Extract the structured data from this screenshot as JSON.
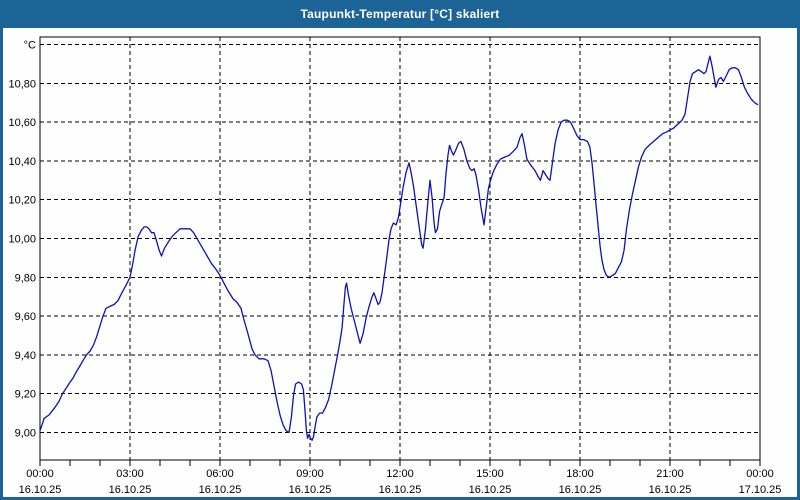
{
  "window": {
    "title": "Taupunkt-Temperatur [°C] skaliert"
  },
  "colors": {
    "titlebar": "#1d6496",
    "window_border": "#1d6496",
    "chart_background": "#fdfefd",
    "grid": "#000000",
    "axis": "#000000",
    "line": "#1010b8",
    "title_text": "#ffffff",
    "label_text": "#000000"
  },
  "chart_data": {
    "type": "line",
    "title": "Taupunkt-Temperatur [°C] skaliert",
    "ylabel": "°C",
    "xlabel": "",
    "legend": "none",
    "grid": "dashed",
    "ylim": [
      8.85,
      11.04
    ],
    "xlim_hours": [
      0,
      24
    ],
    "y_ticks": [
      {
        "value": 9.0,
        "label": "9,00"
      },
      {
        "value": 9.2,
        "label": "9,20"
      },
      {
        "value": 9.4,
        "label": "9,40"
      },
      {
        "value": 9.6,
        "label": "9,60"
      },
      {
        "value": 9.8,
        "label": "9,80"
      },
      {
        "value": 10.0,
        "label": "10,00"
      },
      {
        "value": 10.2,
        "label": "10,20"
      },
      {
        "value": 10.4,
        "label": "10,40"
      },
      {
        "value": 10.6,
        "label": "10,60"
      },
      {
        "value": 10.8,
        "label": "10,80"
      },
      {
        "value": 11.0,
        "label": "°C"
      }
    ],
    "x_ticks": {
      "minor_step_hours": 1,
      "major_step_hours": 3,
      "majors": [
        {
          "hour": 0,
          "time": "00:00",
          "date": "16.10.25"
        },
        {
          "hour": 3,
          "time": "03:00",
          "date": "16.10.25"
        },
        {
          "hour": 6,
          "time": "06:00",
          "date": "16.10.25"
        },
        {
          "hour": 9,
          "time": "09:00",
          "date": "16.10.25"
        },
        {
          "hour": 12,
          "time": "12:00",
          "date": "16.10.25"
        },
        {
          "hour": 15,
          "time": "15:00",
          "date": "16.10.25"
        },
        {
          "hour": 18,
          "time": "18:00",
          "date": "16.10.25"
        },
        {
          "hour": 21,
          "time": "21:00",
          "date": "16.10.25"
        },
        {
          "hour": 24,
          "time": "00:00",
          "date": "17.10.25"
        }
      ]
    },
    "series": [
      {
        "name": "Taupunkt-Temperatur",
        "color": "#1010b8",
        "points": [
          [
            0.0,
            9.01
          ],
          [
            0.07,
            9.04
          ],
          [
            0.13,
            9.07
          ],
          [
            0.2,
            9.08
          ],
          [
            0.3,
            9.09
          ],
          [
            0.4,
            9.11
          ],
          [
            0.5,
            9.13
          ],
          [
            0.63,
            9.16
          ],
          [
            0.75,
            9.2
          ],
          [
            0.88,
            9.23
          ],
          [
            1.0,
            9.26
          ],
          [
            1.1,
            9.28
          ],
          [
            1.2,
            9.31
          ],
          [
            1.32,
            9.34
          ],
          [
            1.43,
            9.37
          ],
          [
            1.55,
            9.4
          ],
          [
            1.67,
            9.42
          ],
          [
            1.78,
            9.45
          ],
          [
            1.88,
            9.49
          ],
          [
            2.0,
            9.55
          ],
          [
            2.1,
            9.6
          ],
          [
            2.2,
            9.64
          ],
          [
            2.33,
            9.65
          ],
          [
            2.47,
            9.66
          ],
          [
            2.6,
            9.68
          ],
          [
            2.73,
            9.72
          ],
          [
            2.87,
            9.76
          ],
          [
            3.0,
            9.8
          ],
          [
            3.08,
            9.86
          ],
          [
            3.17,
            9.94
          ],
          [
            3.27,
            10.01
          ],
          [
            3.37,
            10.04
          ],
          [
            3.47,
            10.06
          ],
          [
            3.55,
            10.06
          ],
          [
            3.63,
            10.05
          ],
          [
            3.72,
            10.03
          ],
          [
            3.8,
            10.03
          ],
          [
            3.88,
            9.99
          ],
          [
            3.97,
            9.94
          ],
          [
            4.05,
            9.91
          ],
          [
            4.15,
            9.95
          ],
          [
            4.27,
            9.98
          ],
          [
            4.4,
            10.01
          ],
          [
            4.53,
            10.03
          ],
          [
            4.67,
            10.05
          ],
          [
            4.83,
            10.05
          ],
          [
            5.0,
            10.05
          ],
          [
            5.12,
            10.03
          ],
          [
            5.27,
            9.99
          ],
          [
            5.42,
            9.95
          ],
          [
            5.57,
            9.91
          ],
          [
            5.72,
            9.87
          ],
          [
            5.87,
            9.84
          ],
          [
            6.0,
            9.81
          ],
          [
            6.13,
            9.77
          ],
          [
            6.27,
            9.73
          ],
          [
            6.43,
            9.69
          ],
          [
            6.57,
            9.67
          ],
          [
            6.7,
            9.64
          ],
          [
            6.8,
            9.58
          ],
          [
            6.93,
            9.51
          ],
          [
            7.07,
            9.43
          ],
          [
            7.17,
            9.4
          ],
          [
            7.3,
            9.38
          ],
          [
            7.47,
            9.38
          ],
          [
            7.6,
            9.37
          ],
          [
            7.7,
            9.32
          ],
          [
            7.8,
            9.24
          ],
          [
            7.9,
            9.16
          ],
          [
            8.0,
            9.09
          ],
          [
            8.1,
            9.04
          ],
          [
            8.2,
            9.01
          ],
          [
            8.3,
            9.0
          ],
          [
            8.38,
            9.08
          ],
          [
            8.45,
            9.19
          ],
          [
            8.52,
            9.25
          ],
          [
            8.62,
            9.26
          ],
          [
            8.72,
            9.25
          ],
          [
            8.78,
            9.22
          ],
          [
            8.83,
            9.12
          ],
          [
            8.88,
            9.01
          ],
          [
            8.92,
            8.97
          ],
          [
            8.97,
            8.99
          ],
          [
            9.02,
            8.97
          ],
          [
            9.07,
            8.96
          ],
          [
            9.12,
            8.98
          ],
          [
            9.17,
            9.03
          ],
          [
            9.23,
            9.08
          ],
          [
            9.32,
            9.1
          ],
          [
            9.42,
            9.1
          ],
          [
            9.52,
            9.13
          ],
          [
            9.62,
            9.17
          ],
          [
            9.72,
            9.24
          ],
          [
            9.82,
            9.32
          ],
          [
            9.92,
            9.4
          ],
          [
            10.0,
            9.47
          ],
          [
            10.07,
            9.54
          ],
          [
            10.13,
            9.66
          ],
          [
            10.18,
            9.75
          ],
          [
            10.22,
            9.77
          ],
          [
            10.28,
            9.71
          ],
          [
            10.37,
            9.64
          ],
          [
            10.47,
            9.58
          ],
          [
            10.57,
            9.52
          ],
          [
            10.67,
            9.46
          ],
          [
            10.77,
            9.51
          ],
          [
            10.87,
            9.59
          ],
          [
            10.97,
            9.65
          ],
          [
            11.07,
            9.7
          ],
          [
            11.13,
            9.72
          ],
          [
            11.2,
            9.69
          ],
          [
            11.27,
            9.66
          ],
          [
            11.33,
            9.67
          ],
          [
            11.4,
            9.72
          ],
          [
            11.47,
            9.8
          ],
          [
            11.55,
            9.89
          ],
          [
            11.63,
            9.99
          ],
          [
            11.7,
            10.05
          ],
          [
            11.78,
            10.08
          ],
          [
            11.87,
            10.07
          ],
          [
            11.95,
            10.11
          ],
          [
            12.03,
            10.19
          ],
          [
            12.1,
            10.26
          ],
          [
            12.2,
            10.34
          ],
          [
            12.3,
            10.39
          ],
          [
            12.37,
            10.34
          ],
          [
            12.45,
            10.27
          ],
          [
            12.53,
            10.18
          ],
          [
            12.63,
            10.07
          ],
          [
            12.72,
            9.97
          ],
          [
            12.77,
            9.95
          ],
          [
            12.85,
            10.05
          ],
          [
            12.93,
            10.19
          ],
          [
            13.0,
            10.3
          ],
          [
            13.07,
            10.21
          ],
          [
            13.13,
            10.09
          ],
          [
            13.18,
            10.03
          ],
          [
            13.25,
            10.05
          ],
          [
            13.32,
            10.14
          ],
          [
            13.4,
            10.18
          ],
          [
            13.47,
            10.21
          ],
          [
            13.53,
            10.33
          ],
          [
            13.6,
            10.43
          ],
          [
            13.65,
            10.48
          ],
          [
            13.72,
            10.45
          ],
          [
            13.78,
            10.43
          ],
          [
            13.87,
            10.46
          ],
          [
            13.95,
            10.49
          ],
          [
            14.03,
            10.5
          ],
          [
            14.13,
            10.46
          ],
          [
            14.23,
            10.4
          ],
          [
            14.33,
            10.36
          ],
          [
            14.4,
            10.35
          ],
          [
            14.47,
            10.36
          ],
          [
            14.53,
            10.33
          ],
          [
            14.62,
            10.25
          ],
          [
            14.7,
            10.16
          ],
          [
            14.8,
            10.07
          ],
          [
            14.88,
            10.17
          ],
          [
            14.95,
            10.26
          ],
          [
            15.0,
            10.29
          ],
          [
            15.1,
            10.34
          ],
          [
            15.22,
            10.38
          ],
          [
            15.35,
            10.41
          ],
          [
            15.5,
            10.42
          ],
          [
            15.65,
            10.43
          ],
          [
            15.78,
            10.45
          ],
          [
            15.9,
            10.47
          ],
          [
            16.0,
            10.52
          ],
          [
            16.07,
            10.54
          ],
          [
            16.15,
            10.48
          ],
          [
            16.23,
            10.41
          ],
          [
            16.35,
            10.38
          ],
          [
            16.5,
            10.35
          ],
          [
            16.6,
            10.32
          ],
          [
            16.68,
            10.3
          ],
          [
            16.77,
            10.35
          ],
          [
            16.85,
            10.33
          ],
          [
            16.93,
            10.31
          ],
          [
            17.0,
            10.3
          ],
          [
            17.08,
            10.39
          ],
          [
            17.17,
            10.49
          ],
          [
            17.27,
            10.56
          ],
          [
            17.37,
            10.6
          ],
          [
            17.47,
            10.61
          ],
          [
            17.58,
            10.61
          ],
          [
            17.68,
            10.6
          ],
          [
            17.78,
            10.57
          ],
          [
            17.9,
            10.53
          ],
          [
            18.0,
            10.51
          ],
          [
            18.12,
            10.51
          ],
          [
            18.25,
            10.5
          ],
          [
            18.33,
            10.47
          ],
          [
            18.4,
            10.39
          ],
          [
            18.47,
            10.28
          ],
          [
            18.53,
            10.18
          ],
          [
            18.6,
            10.07
          ],
          [
            18.67,
            9.96
          ],
          [
            18.73,
            9.89
          ],
          [
            18.8,
            9.84
          ],
          [
            18.88,
            9.81
          ],
          [
            18.98,
            9.8
          ],
          [
            19.08,
            9.81
          ],
          [
            19.18,
            9.82
          ],
          [
            19.28,
            9.85
          ],
          [
            19.38,
            9.88
          ],
          [
            19.47,
            9.94
          ],
          [
            19.55,
            10.05
          ],
          [
            19.65,
            10.15
          ],
          [
            19.75,
            10.23
          ],
          [
            19.85,
            10.3
          ],
          [
            19.95,
            10.37
          ],
          [
            20.05,
            10.42
          ],
          [
            20.17,
            10.46
          ],
          [
            20.3,
            10.48
          ],
          [
            20.45,
            10.5
          ],
          [
            20.6,
            10.52
          ],
          [
            20.75,
            10.54
          ],
          [
            20.9,
            10.55
          ],
          [
            21.0,
            10.56
          ],
          [
            21.13,
            10.57
          ],
          [
            21.27,
            10.59
          ],
          [
            21.4,
            10.61
          ],
          [
            21.5,
            10.64
          ],
          [
            21.58,
            10.72
          ],
          [
            21.67,
            10.81
          ],
          [
            21.75,
            10.85
          ],
          [
            21.85,
            10.86
          ],
          [
            21.95,
            10.87
          ],
          [
            22.05,
            10.86
          ],
          [
            22.13,
            10.85
          ],
          [
            22.2,
            10.86
          ],
          [
            22.28,
            10.91
          ],
          [
            22.33,
            10.94
          ],
          [
            22.4,
            10.89
          ],
          [
            22.47,
            10.83
          ],
          [
            22.53,
            10.78
          ],
          [
            22.62,
            10.82
          ],
          [
            22.7,
            10.83
          ],
          [
            22.78,
            10.81
          ],
          [
            22.88,
            10.84
          ],
          [
            22.97,
            10.87
          ],
          [
            23.07,
            10.88
          ],
          [
            23.18,
            10.88
          ],
          [
            23.28,
            10.87
          ],
          [
            23.38,
            10.83
          ],
          [
            23.48,
            10.78
          ],
          [
            23.58,
            10.75
          ],
          [
            23.7,
            10.72
          ],
          [
            23.82,
            10.7
          ],
          [
            23.92,
            10.69
          ]
        ]
      }
    ]
  }
}
